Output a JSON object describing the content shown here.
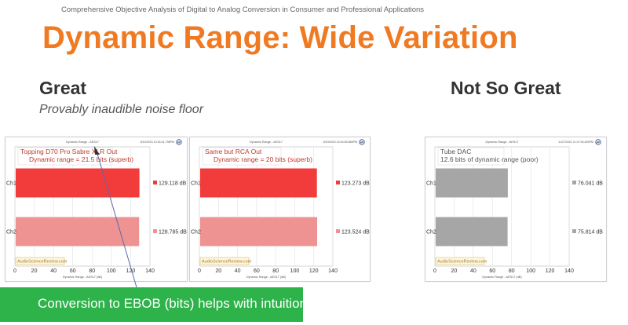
{
  "slide": {
    "header": "Comprehensive Objective Analysis of Digital to Analog Conversion in Consumer and Professional Applications",
    "title": "Dynamic Range: Wide Variation",
    "great_heading": "Great",
    "great_subtitle": "Provably inaudible noise floor",
    "not_great_heading": "Not So Great",
    "banner": "Conversion to EBOB (bits) helps with intuition"
  },
  "chart_data": [
    {
      "type": "bar",
      "title": "Dynamic Range - AES17",
      "timestamp": "5/10/2023 10:34:41.798PM",
      "xlabel": "Dynamic Range - AES17 (dB)",
      "xlim": [
        0,
        140
      ],
      "xticks": [
        "0",
        "20",
        "40",
        "60",
        "80",
        "100",
        "120",
        "140"
      ],
      "categories": [
        "Ch1",
        "Ch2"
      ],
      "values": [
        129.118,
        128.785
      ],
      "value_labels": [
        "129.118 dB",
        "128.785 dB"
      ],
      "colors": [
        "#f23c3c",
        "#ee9292"
      ],
      "annotation": [
        "Topping D70 Pro Sabre XLR Out",
        "Dynamic range = 21.5 bits (superb)"
      ],
      "watermark": "AudioScienceReview.com",
      "logo": "AP"
    },
    {
      "type": "bar",
      "title": "Dynamic Range - AES17",
      "timestamp": "5/10/2023 10:44:55.884PM",
      "xlabel": "Dynamic Range - AES17 (dB)",
      "xlim": [
        0,
        140
      ],
      "xticks": [
        "0",
        "20",
        "40",
        "60",
        "80",
        "100",
        "120",
        "140"
      ],
      "categories": [
        "Ch1",
        "Ch2"
      ],
      "values": [
        123.273,
        123.524
      ],
      "value_labels": [
        "123.273 dB",
        "123.524 dB"
      ],
      "colors": [
        "#f23c3c",
        "#ee9292"
      ],
      "annotation": [
        "Same but RCA Out",
        "Dynamic range = 20 bits (superb)"
      ],
      "watermark": "AudioScienceReview.com",
      "logo": "AP"
    },
    {
      "type": "bar",
      "title": "Dynamic Range - AES17",
      "timestamp": "11/27/2021 11:47:04.693PM",
      "xlabel": "Dynamic Range - AES17 (dB)",
      "xlim": [
        0,
        140
      ],
      "xticks": [
        "0",
        "20",
        "40",
        "60",
        "80",
        "100",
        "120",
        "140"
      ],
      "categories": [
        "Ch1",
        "Ch2"
      ],
      "values": [
        76.041,
        75.814
      ],
      "value_labels": [
        "76.041 dB",
        "75.814 dB"
      ],
      "colors": [
        "#a6a6a6",
        "#a6a6a6"
      ],
      "annotation": [
        "Tube DAC",
        "12.6 bits of dynamic range (poor)"
      ],
      "watermark": "AudioScienceReview.com",
      "logo": "AP"
    }
  ]
}
